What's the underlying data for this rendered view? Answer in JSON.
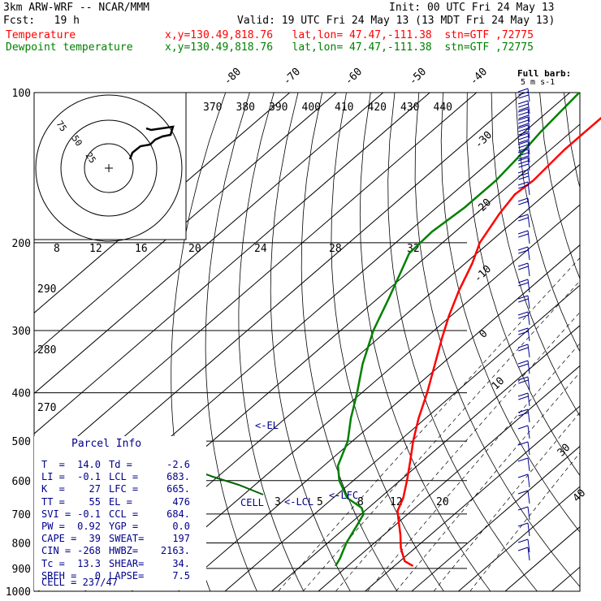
{
  "header": {
    "model": "3km ARW-WRF -- NCAR/MMM",
    "fcst": "Fcst:   19 h",
    "init": "Init: 00 UTC Fri 24 May 13",
    "valid": "Valid: 19 UTC Fri 24 May 13 (13 MDT Fri 24 May 13)",
    "legend": [
      {
        "name": "Temperature",
        "loc": "x,y=130.49,818.76   lat,lon= 47.47,-111.38  stn=GTF ,72775",
        "color": "#ff0000"
      },
      {
        "name": "Dewpoint temperature",
        "loc": "x,y=130.49,818.76   lat,lon= 47.47,-111.38  stn=GTF ,72775",
        "color": "#008000"
      }
    ]
  },
  "wind_legend": {
    "line1": "Full barb:",
    "line2": "5 m s-1"
  },
  "chart_data": {
    "type": "line",
    "title": "",
    "pressure_axis": {
      "scale": "log",
      "ylim": [
        1000,
        100
      ],
      "ticks": [
        100,
        200,
        300,
        400,
        500,
        600,
        700,
        800,
        900,
        1000
      ]
    },
    "isotherm_labels": [
      -80,
      -70,
      -60,
      -50,
      -40,
      -30,
      -20,
      -10,
      0,
      10,
      30,
      40
    ],
    "theta_e_labels": [
      370,
      380,
      390,
      400,
      410,
      420,
      430,
      440
    ],
    "theta_labels": [
      290,
      280,
      270
    ],
    "mixing_ratio_labels": [
      8,
      12,
      16,
      20,
      24,
      28,
      32
    ],
    "lower_mixing_labels": [
      3,
      5,
      8,
      12,
      20
    ],
    "hodograph": {
      "unit_label": "kts",
      "rings": [
        25,
        50,
        75
      ]
    },
    "annotations": {
      "el": "<-EL",
      "lfc": "<-LFC",
      "lcl": "<-LCL",
      "cell": "CELL"
    },
    "series": [
      {
        "name": "Temperature",
        "color": "#ff0000",
        "points": [
          {
            "p": 890,
            "t": 14.0
          },
          {
            "p": 870,
            "t": 11.0
          },
          {
            "p": 820,
            "t": 7.0
          },
          {
            "p": 770,
            "t": 3.5
          },
          {
            "p": 720,
            "t": -0.5
          },
          {
            "p": 690,
            "t": -3.0
          },
          {
            "p": 650,
            "t": -5.0
          },
          {
            "p": 600,
            "t": -8.5
          },
          {
            "p": 550,
            "t": -12.5
          },
          {
            "p": 500,
            "t": -17.0
          },
          {
            "p": 450,
            "t": -21.5
          },
          {
            "p": 400,
            "t": -26.0
          },
          {
            "p": 350,
            "t": -31.5
          },
          {
            "p": 310,
            "t": -36.5
          },
          {
            "p": 280,
            "t": -40.5
          },
          {
            "p": 250,
            "t": -44.5
          },
          {
            "p": 220,
            "t": -48.5
          },
          {
            "p": 200,
            "t": -52.0
          },
          {
            "p": 175,
            "t": -55.0
          },
          {
            "p": 160,
            "t": -56.5
          },
          {
            "p": 150,
            "t": -56.0
          },
          {
            "p": 140,
            "t": -56.5
          },
          {
            "p": 130,
            "t": -57.0
          },
          {
            "p": 120,
            "t": -57.0
          },
          {
            "p": 110,
            "t": -57.0
          },
          {
            "p": 100,
            "t": -57.0
          }
        ]
      },
      {
        "name": "Dewpoint temperature",
        "color": "#008000",
        "points": [
          {
            "p": 890,
            "t": -2.6
          },
          {
            "p": 860,
            "t": -3.5
          },
          {
            "p": 800,
            "t": -6.0
          },
          {
            "p": 740,
            "t": -8.0
          },
          {
            "p": 700,
            "t": -9.5
          },
          {
            "p": 680,
            "t": -11.5
          },
          {
            "p": 650,
            "t": -17.0
          },
          {
            "p": 600,
            "t": -23.0
          },
          {
            "p": 560,
            "t": -27.0
          },
          {
            "p": 500,
            "t": -31.0
          },
          {
            "p": 450,
            "t": -36.0
          },
          {
            "p": 400,
            "t": -41.0
          },
          {
            "p": 350,
            "t": -47.0
          },
          {
            "p": 300,
            "t": -53.0
          },
          {
            "p": 260,
            "t": -57.5
          },
          {
            "p": 230,
            "t": -61.5
          },
          {
            "p": 210,
            "t": -64.5
          },
          {
            "p": 190,
            "t": -65.0
          },
          {
            "p": 170,
            "t": -64.0
          },
          {
            "p": 150,
            "t": -64.0
          },
          {
            "p": 135,
            "t": -65.0
          },
          {
            "p": 120,
            "t": -66.5
          },
          {
            "p": 100,
            "t": -68.0
          }
        ]
      }
    ]
  },
  "parcel_info": {
    "title": "Parcel Info",
    "rows": [
      [
        "T  =",
        "14.0",
        "Td =",
        "-2.6"
      ],
      [
        "LI =",
        "-0.1",
        "LCL =",
        "683."
      ],
      [
        "K  =",
        "27",
        "LFC =",
        "665."
      ],
      [
        "TT =",
        "55",
        "EL =",
        "476"
      ],
      [
        "SVI =",
        "-0.1",
        "CCL =",
        "684."
      ],
      [
        "PW =",
        "0.92",
        "YGP =",
        "0.0"
      ],
      [
        "CAPE =",
        "39",
        "SWEAT=",
        "197"
      ],
      [
        "CIN =",
        "-268",
        "HWBZ=",
        "2163."
      ],
      [
        "Tc =",
        "13.3",
        "SHEAR=",
        "34."
      ],
      [
        "SREH =",
        "0",
        "LAPSE=",
        "7.5"
      ]
    ],
    "cell": "CELL = 237/47"
  }
}
